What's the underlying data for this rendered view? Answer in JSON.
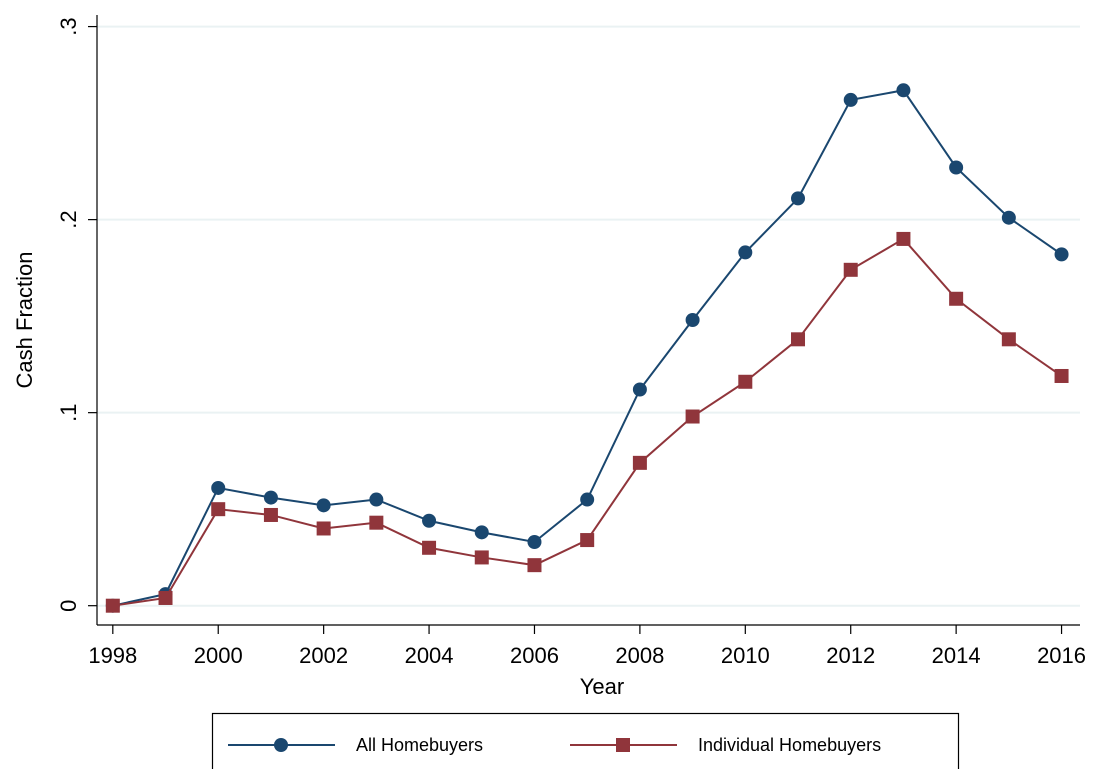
{
  "chart_data": {
    "type": "line",
    "x": [
      1998,
      1999,
      2000,
      2001,
      2002,
      2003,
      2004,
      2005,
      2006,
      2007,
      2008,
      2009,
      2010,
      2011,
      2012,
      2013,
      2014,
      2015,
      2016
    ],
    "series": [
      {
        "name": "All Homebuyers",
        "color": "#1a476f",
        "marker": "circle",
        "values": [
          0,
          0.006,
          0.061,
          0.056,
          0.052,
          0.055,
          0.044,
          0.038,
          0.033,
          0.055,
          0.112,
          0.148,
          0.183,
          0.211,
          0.262,
          0.267,
          0.227,
          0.201,
          0.182
        ]
      },
      {
        "name": "Individual Homebuyers",
        "color": "#90353b",
        "marker": "square",
        "values": [
          0,
          0.004,
          0.05,
          0.047,
          0.04,
          0.043,
          0.03,
          0.025,
          0.021,
          0.034,
          0.074,
          0.098,
          0.116,
          0.138,
          0.174,
          0.19,
          0.159,
          0.138,
          0.119
        ]
      }
    ],
    "x_label": "Year",
    "y_label": "Cash Fraction",
    "xlim": [
      1997.7,
      2016.35
    ],
    "ylim": [
      -0.01,
      0.306
    ],
    "xticks": [
      1998,
      2000,
      2002,
      2004,
      2006,
      2008,
      2010,
      2012,
      2014,
      2016
    ],
    "yticks": [
      0,
      {
        "value": 0.1,
        "label": ".1"
      },
      {
        "value": 0.2,
        "label": ".2"
      },
      {
        "value": 0.3,
        "label": ".3"
      }
    ],
    "grid": true,
    "legend": "bottom"
  }
}
